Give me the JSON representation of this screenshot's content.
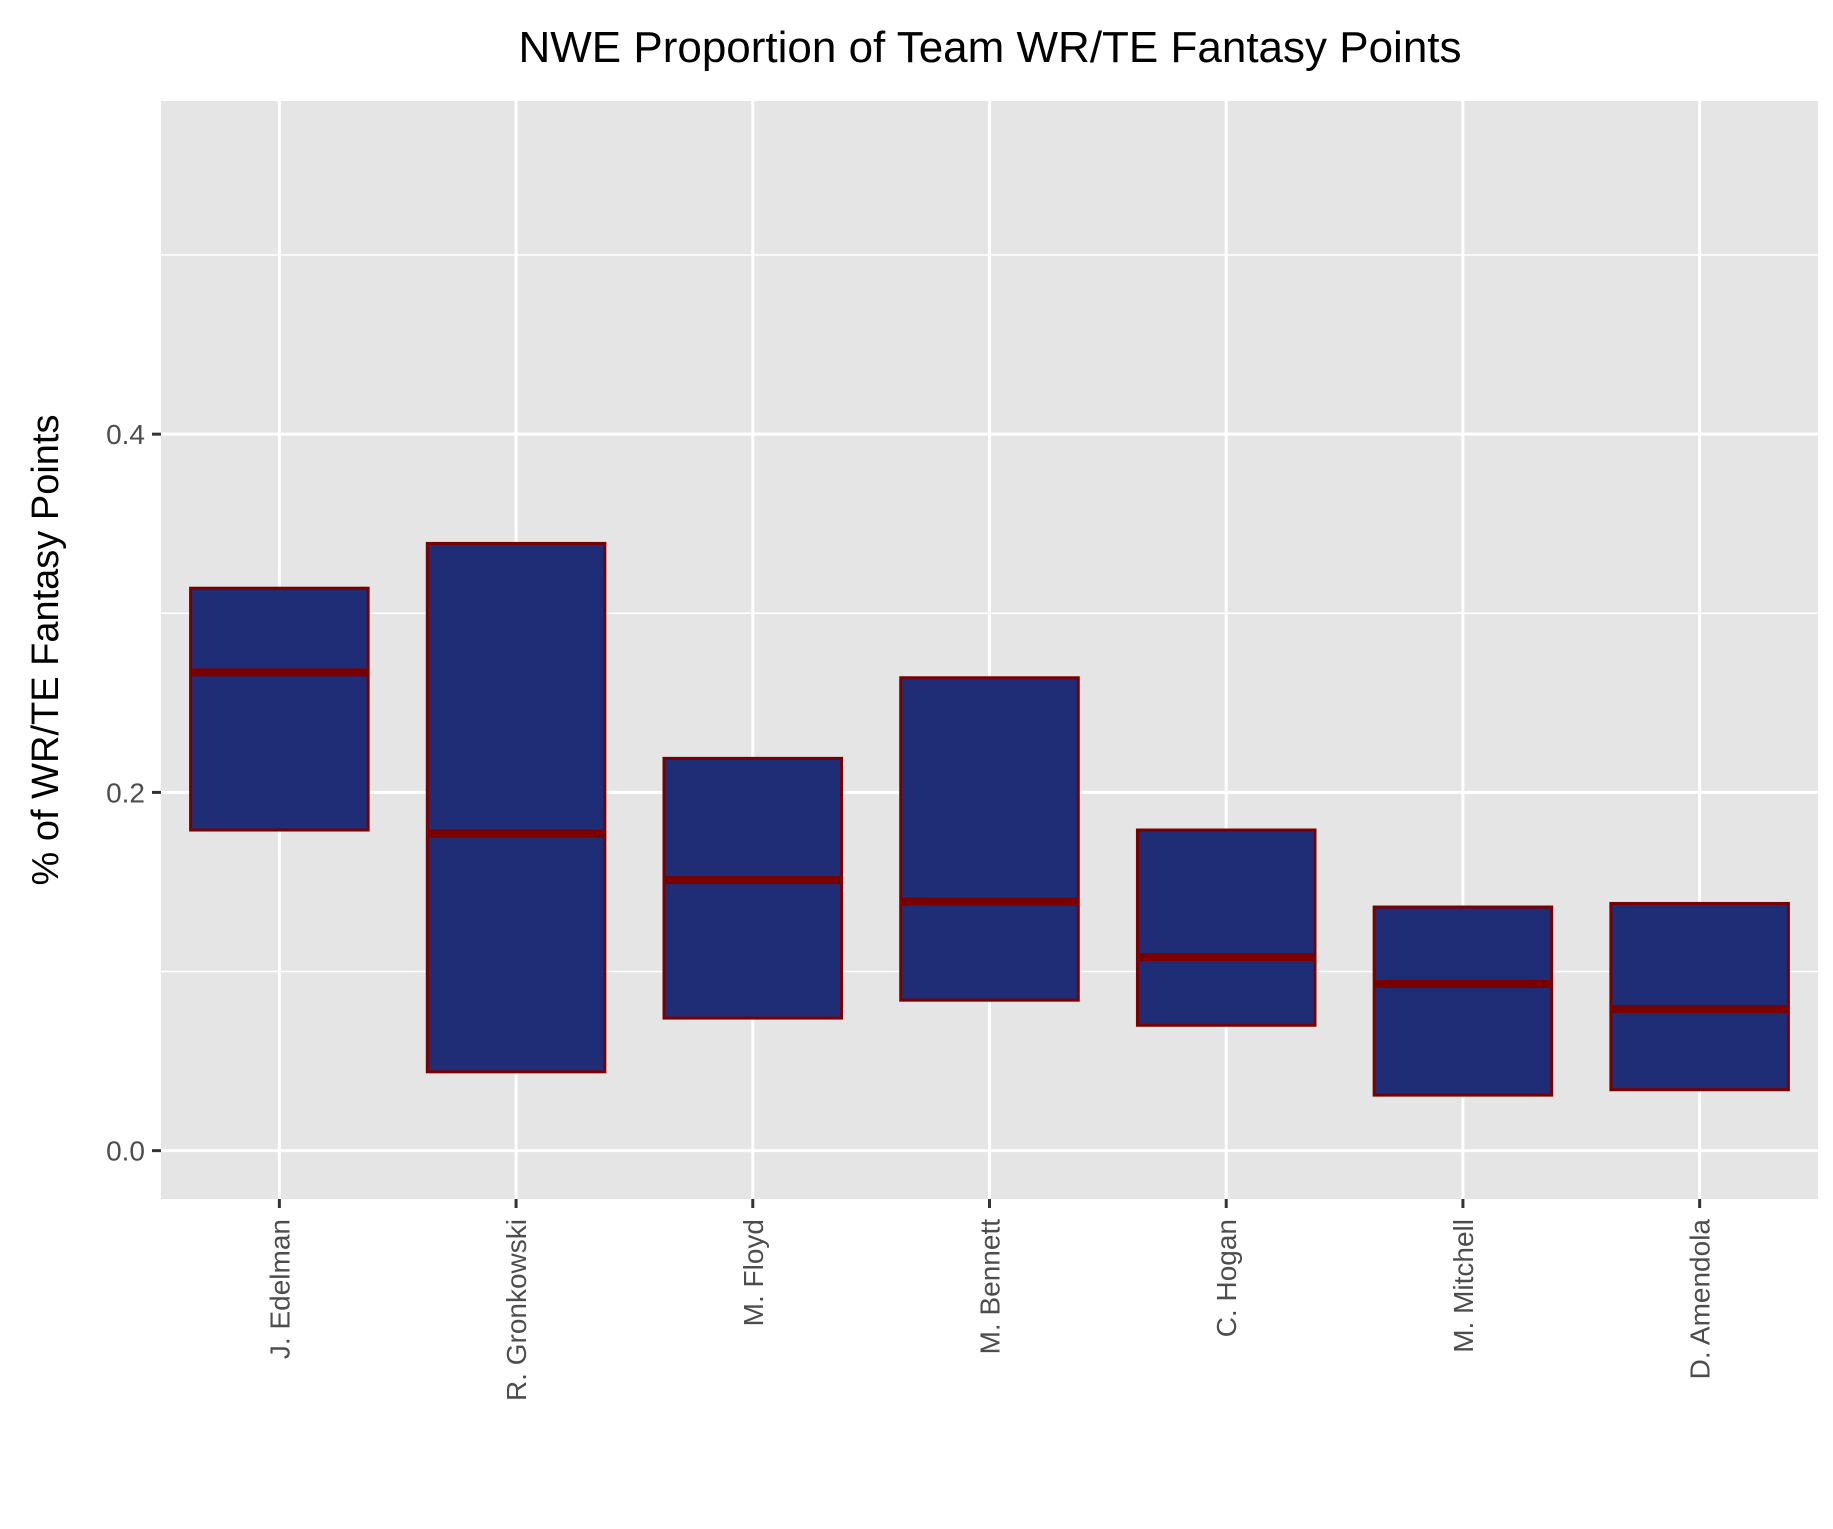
{
  "chart_data": {
    "type": "box",
    "title": "NWE Proportion of Team WR/TE Fantasy Points",
    "xlabel": "",
    "ylabel": "% of WR/TE Fantasy Points",
    "ylim": [
      -0.027,
      0.586
    ],
    "yticks": [
      {
        "value": 0.0,
        "label": "0.0"
      },
      {
        "value": 0.2,
        "label": "0.2"
      },
      {
        "value": 0.4,
        "label": "0.4"
      }
    ],
    "minor_gridlines": [
      0.1,
      0.3,
      0.5
    ],
    "grid": true,
    "categories": [
      "J. Edelman",
      "R. Gronkowski",
      "M. Floyd",
      "M. Bennett",
      "C. Hogan",
      "M. Mitchell",
      "D. Amendola"
    ],
    "boxes": [
      {
        "q1": 0.179,
        "median": 0.267,
        "q3": 0.314
      },
      {
        "q1": 0.044,
        "median": 0.177,
        "q3": 0.339
      },
      {
        "q1": 0.074,
        "median": 0.151,
        "q3": 0.219
      },
      {
        "q1": 0.084,
        "median": 0.139,
        "q3": 0.264
      },
      {
        "q1": 0.07,
        "median": 0.108,
        "q3": 0.179
      },
      {
        "q1": 0.031,
        "median": 0.093,
        "q3": 0.136
      },
      {
        "q1": 0.034,
        "median": 0.079,
        "q3": 0.138
      }
    ],
    "colors": {
      "box_fill": "#1f2d76",
      "box_stroke": "#7a0000",
      "panel_bg": "#e5e5e5",
      "grid": "#ffffff",
      "tick_text": "#4d4d4d",
      "tick_mark": "#333333"
    }
  }
}
